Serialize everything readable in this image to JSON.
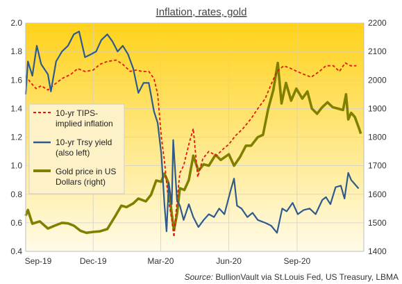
{
  "chart_data": {
    "type": "line",
    "title": "Inflation,  rates, gold",
    "x_ticks": [
      "Sep-19",
      "Dec-19",
      "Mar-20",
      "Jun-20",
      "Sep-20"
    ],
    "x_range": [
      "2019-09-01",
      "2020-11-30"
    ],
    "y_left": {
      "range": [
        0.4,
        2.0
      ],
      "ticks": [
        "0.4",
        "0.6",
        "0.8",
        "1.0",
        "1.2",
        "1.4",
        "1.6",
        "1.8",
        "2.0"
      ]
    },
    "y_right": {
      "range": [
        1400,
        2200
      ],
      "ticks": [
        "1400",
        "1500",
        "1600",
        "1700",
        "1800",
        "1900",
        "2000",
        "2100",
        "2200"
      ]
    },
    "grid": true,
    "legend_position": "left",
    "background": {
      "top": "#ffd21a",
      "bottom": "#fffbe8"
    },
    "series": [
      {
        "name": "10-yr TIPS-implied inflation",
        "axis": "left",
        "color": "#e3170a",
        "style": "dashed",
        "points": [
          [
            "2019-09-01",
            1.63
          ],
          [
            "2019-09-08",
            1.58
          ],
          [
            "2019-09-15",
            1.54
          ],
          [
            "2019-09-22",
            1.56
          ],
          [
            "2019-10-01",
            1.53
          ],
          [
            "2019-10-10",
            1.57
          ],
          [
            "2019-10-20",
            1.61
          ],
          [
            "2019-11-01",
            1.64
          ],
          [
            "2019-11-10",
            1.68
          ],
          [
            "2019-11-20",
            1.66
          ],
          [
            "2019-12-01",
            1.67
          ],
          [
            "2019-12-10",
            1.71
          ],
          [
            "2019-12-20",
            1.73
          ],
          [
            "2020-01-01",
            1.74
          ],
          [
            "2020-01-10",
            1.71
          ],
          [
            "2020-01-20",
            1.66
          ],
          [
            "2020-01-28",
            1.67
          ],
          [
            "2020-02-05",
            1.66
          ],
          [
            "2020-02-14",
            1.66
          ],
          [
            "2020-02-21",
            1.61
          ],
          [
            "2020-02-26",
            1.5
          ],
          [
            "2020-03-02",
            1.2
          ],
          [
            "2020-03-06",
            1.04
          ],
          [
            "2020-03-11",
            0.78
          ],
          [
            "2020-03-16",
            0.62
          ],
          [
            "2020-03-19",
            0.5
          ],
          [
            "2020-03-23",
            0.75
          ],
          [
            "2020-03-27",
            0.95
          ],
          [
            "2020-04-01",
            1.0
          ],
          [
            "2020-04-08",
            1.15
          ],
          [
            "2020-04-14",
            1.26
          ],
          [
            "2020-04-20",
            0.92
          ],
          [
            "2020-04-27",
            1.05
          ],
          [
            "2020-05-05",
            1.1
          ],
          [
            "2020-05-15",
            1.07
          ],
          [
            "2020-05-25",
            1.12
          ],
          [
            "2020-06-01",
            1.15
          ],
          [
            "2020-06-10",
            1.21
          ],
          [
            "2020-06-20",
            1.26
          ],
          [
            "2020-07-01",
            1.33
          ],
          [
            "2020-07-10",
            1.4
          ],
          [
            "2020-07-20",
            1.47
          ],
          [
            "2020-07-28",
            1.57
          ],
          [
            "2020-08-05",
            1.66
          ],
          [
            "2020-08-14",
            1.7
          ],
          [
            "2020-08-24",
            1.68
          ],
          [
            "2020-09-01",
            1.66
          ],
          [
            "2020-09-10",
            1.64
          ],
          [
            "2020-09-20",
            1.62
          ],
          [
            "2020-10-01",
            1.66
          ],
          [
            "2020-10-10",
            1.7
          ],
          [
            "2020-10-20",
            1.7
          ],
          [
            "2020-10-28",
            1.66
          ],
          [
            "2020-11-05",
            1.72
          ],
          [
            "2020-11-12",
            1.7
          ],
          [
            "2020-11-20",
            1.7
          ]
        ]
      },
      {
        "name": "10-yr Trsy yield (also left)",
        "axis": "left",
        "color": "#2e5a8c",
        "style": "solid",
        "points": [
          [
            "2019-09-01",
            1.5
          ],
          [
            "2019-09-04",
            1.73
          ],
          [
            "2019-09-10",
            1.63
          ],
          [
            "2019-09-16",
            1.84
          ],
          [
            "2019-09-22",
            1.71
          ],
          [
            "2019-10-01",
            1.64
          ],
          [
            "2019-10-05",
            1.52
          ],
          [
            "2019-10-12",
            1.73
          ],
          [
            "2019-10-20",
            1.8
          ],
          [
            "2019-10-28",
            1.84
          ],
          [
            "2019-11-05",
            1.92
          ],
          [
            "2019-11-12",
            1.94
          ],
          [
            "2019-11-20",
            1.76
          ],
          [
            "2019-11-28",
            1.78
          ],
          [
            "2019-12-05",
            1.8
          ],
          [
            "2019-12-12",
            1.88
          ],
          [
            "2019-12-20",
            1.92
          ],
          [
            "2019-12-27",
            1.87
          ],
          [
            "2020-01-03",
            1.8
          ],
          [
            "2020-01-10",
            1.84
          ],
          [
            "2020-01-17",
            1.78
          ],
          [
            "2020-01-24",
            1.68
          ],
          [
            "2020-01-31",
            1.51
          ],
          [
            "2020-02-07",
            1.58
          ],
          [
            "2020-02-14",
            1.58
          ],
          [
            "2020-02-21",
            1.38
          ],
          [
            "2020-02-26",
            1.3
          ],
          [
            "2020-03-02",
            1.08
          ],
          [
            "2020-03-06",
            0.74
          ],
          [
            "2020-03-09",
            0.54
          ],
          [
            "2020-03-12",
            0.88
          ],
          [
            "2020-03-16",
            0.73
          ],
          [
            "2020-03-18",
            1.18
          ],
          [
            "2020-03-23",
            0.76
          ],
          [
            "2020-03-27",
            0.72
          ],
          [
            "2020-04-01",
            0.62
          ],
          [
            "2020-04-08",
            0.73
          ],
          [
            "2020-04-14",
            0.64
          ],
          [
            "2020-04-21",
            0.57
          ],
          [
            "2020-04-28",
            0.62
          ],
          [
            "2020-05-05",
            0.66
          ],
          [
            "2020-05-12",
            0.64
          ],
          [
            "2020-05-19",
            0.7
          ],
          [
            "2020-05-26",
            0.66
          ],
          [
            "2020-06-03",
            0.82
          ],
          [
            "2020-06-08",
            0.91
          ],
          [
            "2020-06-12",
            0.72
          ],
          [
            "2020-06-18",
            0.7
          ],
          [
            "2020-06-26",
            0.64
          ],
          [
            "2020-07-03",
            0.67
          ],
          [
            "2020-07-10",
            0.62
          ],
          [
            "2020-07-20",
            0.6
          ],
          [
            "2020-07-28",
            0.58
          ],
          [
            "2020-08-05",
            0.53
          ],
          [
            "2020-08-12",
            0.7
          ],
          [
            "2020-08-18",
            0.68
          ],
          [
            "2020-08-26",
            0.74
          ],
          [
            "2020-09-02",
            0.66
          ],
          [
            "2020-09-10",
            0.69
          ],
          [
            "2020-09-18",
            0.7
          ],
          [
            "2020-09-26",
            0.66
          ],
          [
            "2020-10-05",
            0.76
          ],
          [
            "2020-10-10",
            0.78
          ],
          [
            "2020-10-16",
            0.73
          ],
          [
            "2020-10-23",
            0.85
          ],
          [
            "2020-10-30",
            0.86
          ],
          [
            "2020-11-04",
            0.77
          ],
          [
            "2020-11-09",
            0.95
          ],
          [
            "2020-11-13",
            0.9
          ],
          [
            "2020-11-18",
            0.87
          ],
          [
            "2020-11-23",
            0.84
          ]
        ]
      },
      {
        "name": "Gold price in US Dollars (right)",
        "axis": "right",
        "color": "#808000",
        "style": "solid",
        "points": [
          [
            "2019-09-01",
            1525
          ],
          [
            "2019-09-04",
            1545
          ],
          [
            "2019-09-10",
            1497
          ],
          [
            "2019-09-20",
            1505
          ],
          [
            "2019-10-01",
            1480
          ],
          [
            "2019-10-10",
            1490
          ],
          [
            "2019-10-20",
            1500
          ],
          [
            "2019-10-28",
            1498
          ],
          [
            "2019-11-05",
            1490
          ],
          [
            "2019-11-14",
            1472
          ],
          [
            "2019-11-22",
            1465
          ],
          [
            "2019-12-01",
            1468
          ],
          [
            "2019-12-10",
            1470
          ],
          [
            "2019-12-20",
            1478
          ],
          [
            "2019-12-30",
            1520
          ],
          [
            "2020-01-08",
            1560
          ],
          [
            "2020-01-15",
            1555
          ],
          [
            "2020-01-24",
            1568
          ],
          [
            "2020-01-31",
            1585
          ],
          [
            "2020-02-10",
            1575
          ],
          [
            "2020-02-17",
            1598
          ],
          [
            "2020-02-24",
            1648
          ],
          [
            "2020-03-02",
            1644
          ],
          [
            "2020-03-06",
            1672
          ],
          [
            "2020-03-11",
            1643
          ],
          [
            "2020-03-16",
            1530
          ],
          [
            "2020-03-19",
            1475
          ],
          [
            "2020-03-23",
            1530
          ],
          [
            "2020-03-27",
            1621
          ],
          [
            "2020-04-02",
            1615
          ],
          [
            "2020-04-08",
            1650
          ],
          [
            "2020-04-14",
            1735
          ],
          [
            "2020-04-21",
            1682
          ],
          [
            "2020-04-28",
            1705
          ],
          [
            "2020-05-05",
            1700
          ],
          [
            "2020-05-14",
            1738
          ],
          [
            "2020-05-21",
            1720
          ],
          [
            "2020-06-01",
            1740
          ],
          [
            "2020-06-08",
            1700
          ],
          [
            "2020-06-16",
            1730
          ],
          [
            "2020-06-24",
            1770
          ],
          [
            "2020-07-01",
            1770
          ],
          [
            "2020-07-10",
            1800
          ],
          [
            "2020-07-17",
            1808
          ],
          [
            "2020-07-24",
            1898
          ],
          [
            "2020-07-31",
            1965
          ],
          [
            "2020-08-06",
            2060
          ],
          [
            "2020-08-11",
            1918
          ],
          [
            "2020-08-17",
            1990
          ],
          [
            "2020-08-24",
            1928
          ],
          [
            "2020-08-31",
            1970
          ],
          [
            "2020-09-08",
            1935
          ],
          [
            "2020-09-15",
            1960
          ],
          [
            "2020-09-21",
            1900
          ],
          [
            "2020-09-28",
            1882
          ],
          [
            "2020-10-05",
            1905
          ],
          [
            "2020-10-12",
            1922
          ],
          [
            "2020-10-19",
            1905
          ],
          [
            "2020-10-26",
            1900
          ],
          [
            "2020-11-02",
            1895
          ],
          [
            "2020-11-06",
            1950
          ],
          [
            "2020-11-09",
            1862
          ],
          [
            "2020-11-13",
            1885
          ],
          [
            "2020-11-18",
            1870
          ],
          [
            "2020-11-23",
            1835
          ],
          [
            "2020-11-26",
            1812
          ]
        ]
      }
    ]
  },
  "legend": [
    {
      "lines": [
        "10-yr TIPS-",
        "implied inflation"
      ]
    },
    {
      "lines": [
        "10-yr Trsy yield",
        "(also left)"
      ]
    },
    {
      "lines": [
        "Gold price in US",
        "Dollars (right)"
      ]
    }
  ],
  "footer": {
    "source_label": "Source:",
    "source_text": " BullionVault via  St.Louis Fed,  US Treasury,  LBMA"
  }
}
